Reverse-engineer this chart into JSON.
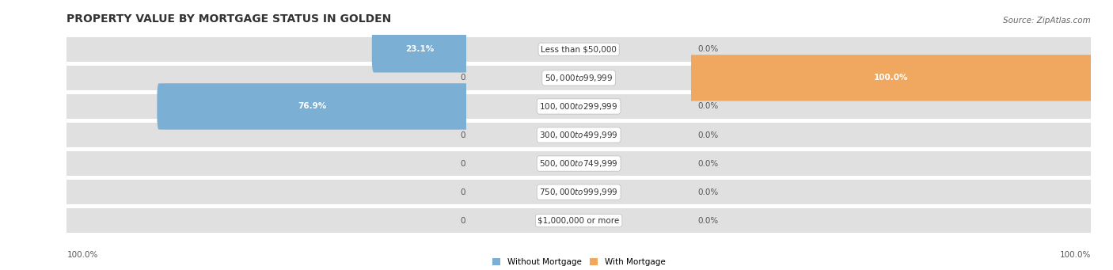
{
  "title": "PROPERTY VALUE BY MORTGAGE STATUS IN GOLDEN",
  "source": "Source: ZipAtlas.com",
  "categories": [
    "Less than $50,000",
    "$50,000 to $99,999",
    "$100,000 to $299,999",
    "$300,000 to $499,999",
    "$500,000 to $749,999",
    "$750,000 to $999,999",
    "$1,000,000 or more"
  ],
  "without_mortgage": [
    23.1,
    0.0,
    76.9,
    0.0,
    0.0,
    0.0,
    0.0
  ],
  "with_mortgage": [
    0.0,
    100.0,
    0.0,
    0.0,
    0.0,
    0.0,
    0.0
  ],
  "color_without": "#7bafd4",
  "color_with": "#f0a860",
  "bg_row_dark": "#e0e0e0",
  "bg_row_light": "#ebebeb",
  "bg_fig": "#ffffff",
  "title_fontsize": 10,
  "source_fontsize": 7.5,
  "label_fontsize": 7.5,
  "cat_fontsize": 7.5,
  "bar_height": 0.62,
  "xlim": 100,
  "legend_labels": [
    "Without Mortgage",
    "With Mortgage"
  ],
  "axis_label_left": "100.0%",
  "axis_label_right": "100.0%"
}
